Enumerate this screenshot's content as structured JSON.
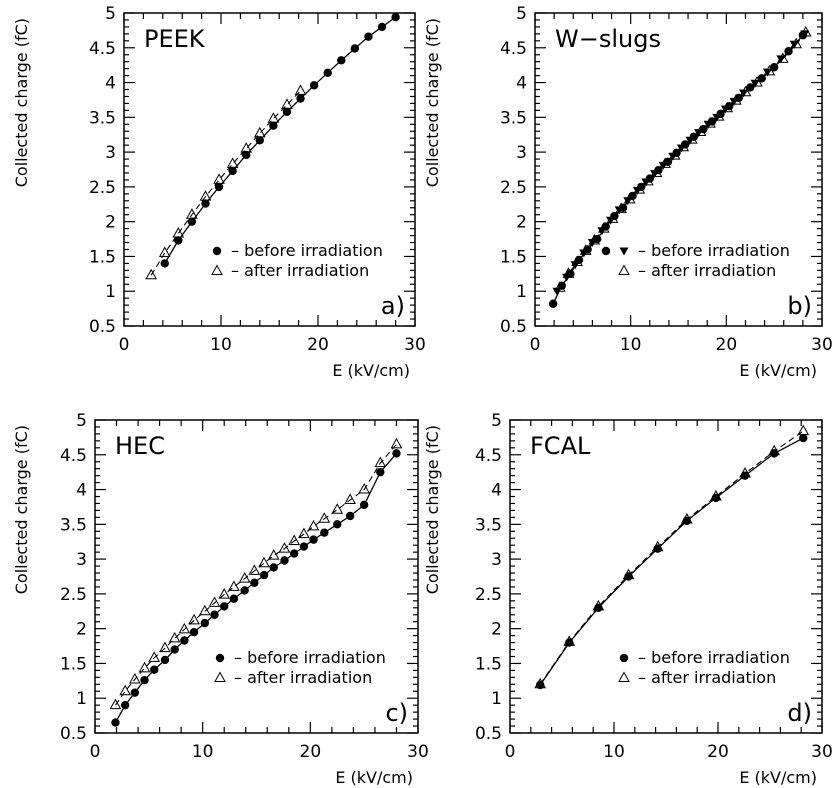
{
  "chart_data": [
    {
      "type": "scatter",
      "title": "PEEK",
      "panel_label": "a)",
      "xlabel": "E (kV/cm)",
      "ylabel": "Collected charge (fC)",
      "xlim": [
        0,
        30
      ],
      "ylim": [
        0.5,
        5
      ],
      "x_ticks": [
        "0",
        "10",
        "20",
        "30"
      ],
      "y_ticks": [
        "0.5",
        "1",
        "1.5",
        "2",
        "2.5",
        "3",
        "3.5",
        "4",
        "4.5",
        "5"
      ],
      "legend": {
        "placement": "bottom-right",
        "before_text": "– before irradiation",
        "after_text": "– after irradiation"
      },
      "series": [
        {
          "key": "before",
          "marker": "filled-circle",
          "x": [
            4.2,
            5.6,
            7.0,
            8.4,
            9.8,
            11.2,
            12.6,
            14.0,
            15.4,
            16.8,
            18.2,
            19.6,
            21.0,
            22.4,
            23.8,
            25.2,
            26.6,
            28.0
          ],
          "y": [
            1.4,
            1.73,
            2.0,
            2.26,
            2.5,
            2.73,
            2.96,
            3.17,
            3.38,
            3.58,
            3.77,
            3.96,
            4.14,
            4.32,
            4.49,
            4.66,
            4.8,
            4.94
          ]
        },
        {
          "key": "after",
          "marker": "open-triangle",
          "x": [
            2.8,
            4.2,
            5.6,
            7.0,
            8.4,
            9.8,
            11.2,
            12.6,
            14.0,
            15.4,
            16.8,
            18.2
          ],
          "y": [
            1.23,
            1.55,
            1.83,
            2.1,
            2.36,
            2.6,
            2.83,
            3.05,
            3.27,
            3.48,
            3.68,
            3.88
          ]
        }
      ]
    },
    {
      "type": "scatter",
      "title": "W−slugs",
      "panel_label": "b)",
      "xlabel": "E (kV/cm)",
      "ylabel": "Collected charge (fC)",
      "xlim": [
        0,
        30
      ],
      "ylim": [
        0.5,
        5
      ],
      "x_ticks": [
        "0",
        "10",
        "20",
        "30"
      ],
      "y_ticks": [
        "0.5",
        "1",
        "1.5",
        "2",
        "2.5",
        "3",
        "3.5",
        "4",
        "4.5",
        "5"
      ],
      "legend": {
        "placement": "bottom-right",
        "before_text": "– before irradiation",
        "after_text": "– after irradiation"
      },
      "series": [
        {
          "key": "before",
          "marker": "filled-circle",
          "x": [
            1.9,
            2.8,
            3.7,
            4.6,
            5.5,
            6.5,
            7.4,
            8.3,
            9.2,
            10.2,
            11.1,
            12.0,
            12.9,
            13.9,
            14.8,
            15.7,
            16.6,
            17.6,
            18.5,
            19.4,
            20.3,
            21.3,
            22.5,
            23.7,
            25.0,
            26.5,
            28.0
          ],
          "y": [
            0.82,
            1.08,
            1.25,
            1.45,
            1.6,
            1.75,
            1.93,
            2.08,
            2.2,
            2.37,
            2.5,
            2.62,
            2.74,
            2.86,
            2.99,
            3.11,
            3.22,
            3.33,
            3.44,
            3.55,
            3.66,
            3.78,
            3.93,
            4.06,
            4.22,
            4.45,
            4.68
          ]
        },
        {
          "key": "before2",
          "marker": "filled-triangle-down",
          "x": [
            2.3,
            3.3,
            4.2,
            5.1,
            6.0,
            7.0,
            7.9,
            8.8,
            9.7,
            10.7,
            11.6,
            12.5,
            13.4,
            14.4,
            15.3,
            16.2,
            17.1,
            18.1,
            19.0,
            19.9,
            20.8,
            21.8,
            23.0,
            24.3,
            25.7,
            27.1,
            28.2
          ],
          "y": [
            1.0,
            1.2,
            1.38,
            1.55,
            1.7,
            1.87,
            2.02,
            2.17,
            2.3,
            2.45,
            2.57,
            2.69,
            2.81,
            2.94,
            3.06,
            3.17,
            3.28,
            3.4,
            3.5,
            3.62,
            3.73,
            3.85,
            3.99,
            4.15,
            4.34,
            4.55,
            4.7
          ]
        },
        {
          "key": "after",
          "marker": "open-triangle",
          "x": [
            2.6,
            3.5,
            4.4,
            5.3,
            6.2,
            7.2,
            8.1,
            9.0,
            9.9,
            10.9,
            11.8,
            12.7,
            13.6,
            14.6,
            15.5,
            16.4,
            17.3,
            18.3,
            19.2,
            20.1,
            21.0,
            22.0,
            23.2,
            24.5,
            25.9,
            27.3,
            28.3
          ],
          "y": [
            1.05,
            1.25,
            1.42,
            1.58,
            1.73,
            1.9,
            2.04,
            2.18,
            2.32,
            2.46,
            2.58,
            2.7,
            2.83,
            2.95,
            3.07,
            3.18,
            3.29,
            3.41,
            3.51,
            3.63,
            3.74,
            3.86,
            4.0,
            4.16,
            4.34,
            4.55,
            4.72
          ]
        }
      ]
    },
    {
      "type": "scatter",
      "title": "HEC",
      "panel_label": "c)",
      "xlabel": "E (kV/cm)",
      "ylabel": "Collected charge (fC)",
      "xlim": [
        0,
        30
      ],
      "ylim": [
        0.5,
        5
      ],
      "x_ticks": [
        "0",
        "10",
        "20",
        "30"
      ],
      "y_ticks": [
        "0.5",
        "1",
        "1.5",
        "2",
        "2.5",
        "3",
        "3.5",
        "4",
        "4.5",
        "5"
      ],
      "legend": {
        "placement": "bottom-right",
        "before_text": "– before irradiation",
        "after_text": "– after irradiation"
      },
      "series": [
        {
          "key": "before",
          "marker": "filled-circle",
          "x": [
            1.9,
            2.8,
            3.7,
            4.6,
            5.5,
            6.5,
            7.4,
            8.3,
            9.2,
            10.2,
            11.1,
            12.0,
            12.9,
            13.9,
            14.8,
            15.7,
            16.6,
            17.6,
            18.5,
            19.4,
            20.3,
            21.3,
            22.5,
            23.7,
            25.0,
            26.5,
            28.0
          ],
          "y": [
            0.65,
            0.9,
            1.08,
            1.26,
            1.41,
            1.55,
            1.7,
            1.83,
            1.95,
            2.08,
            2.2,
            2.32,
            2.43,
            2.55,
            2.66,
            2.77,
            2.88,
            2.98,
            3.08,
            3.18,
            3.28,
            3.38,
            3.5,
            3.62,
            3.78,
            4.25,
            4.52
          ]
        },
        {
          "key": "after",
          "marker": "open-triangle",
          "x": [
            1.9,
            2.8,
            3.7,
            4.6,
            5.5,
            6.5,
            7.4,
            8.3,
            9.2,
            10.2,
            11.1,
            12.0,
            12.9,
            13.9,
            14.8,
            15.7,
            16.6,
            17.6,
            18.5,
            19.4,
            20.3,
            21.3,
            22.5,
            23.7,
            25.0,
            26.5,
            28.0
          ],
          "y": [
            0.9,
            1.1,
            1.27,
            1.43,
            1.58,
            1.72,
            1.86,
            1.99,
            2.12,
            2.25,
            2.37,
            2.49,
            2.6,
            2.72,
            2.83,
            2.94,
            3.05,
            3.15,
            3.26,
            3.36,
            3.47,
            3.58,
            3.71,
            3.85,
            4.0,
            4.38,
            4.65
          ]
        }
      ]
    },
    {
      "type": "scatter",
      "title": "FCAL",
      "panel_label": "d)",
      "xlabel": "E (kV/cm)",
      "ylabel": "Collected charge (fC)",
      "xlim": [
        0,
        30
      ],
      "ylim": [
        0.5,
        5
      ],
      "x_ticks": [
        "0",
        "10",
        "20",
        "30"
      ],
      "y_ticks": [
        "0.5",
        "1",
        "1.5",
        "2",
        "2.5",
        "3",
        "3.5",
        "4",
        "4.5",
        "5"
      ],
      "legend": {
        "placement": "bottom-right",
        "before_text": "– before irradiation",
        "after_text": "– after irradiation"
      },
      "series": [
        {
          "key": "before",
          "marker": "filled-circle",
          "x": [
            2.9,
            5.7,
            8.5,
            11.4,
            14.2,
            17.0,
            19.8,
            22.6,
            25.4,
            28.2
          ],
          "y": [
            1.19,
            1.8,
            2.3,
            2.75,
            3.15,
            3.55,
            3.88,
            4.2,
            4.52,
            4.74
          ]
        },
        {
          "key": "after",
          "marker": "open-triangle",
          "x": [
            2.9,
            5.7,
            8.5,
            11.4,
            14.2,
            17.0,
            19.8,
            22.6,
            25.4,
            28.2
          ],
          "y": [
            1.2,
            1.81,
            2.32,
            2.77,
            3.17,
            3.57,
            3.9,
            4.23,
            4.55,
            4.84
          ]
        }
      ]
    }
  ]
}
